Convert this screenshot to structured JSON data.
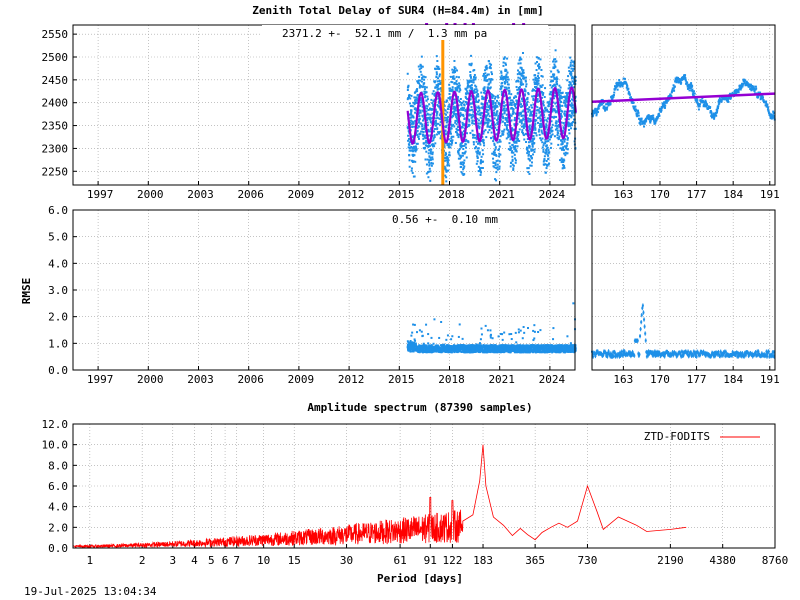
{
  "chart_data": [
    {
      "type": "scatter",
      "panel": "ztd-long-term",
      "title": "Zenith Total Delay of SUR4 (H=84.4m) in [mm]",
      "annotation": "2371.2 +-  52.1 mm /  1.3 mm pa",
      "ylim": [
        2220,
        2570
      ],
      "xlim": [
        1995.5,
        2025.5
      ],
      "y_ticks": [
        2250,
        2300,
        2350,
        2400,
        2450,
        2500,
        2550
      ],
      "x_ticks": [
        1997,
        2000,
        2003,
        2006,
        2009,
        2012,
        2015,
        2018,
        2021,
        2024
      ],
      "data_start": 2015.5,
      "data_end": 2025.55,
      "mean": 2371.2,
      "std": 52.1,
      "trend_mm_pa": 1.3,
      "seasonal_amplitude": 55,
      "gap_year": 2017.6,
      "series_colors": {
        "data": "#1e90e8",
        "model": "#9400d3",
        "gap": "#ff9400"
      }
    },
    {
      "type": "scatter",
      "panel": "ztd-recent",
      "xlim": [
        157,
        192
      ],
      "ylim": [
        2220,
        2570
      ],
      "x_ticks": [
        163,
        170,
        177,
        184,
        191
      ],
      "model_start": 2402,
      "model_end": 2420
    },
    {
      "type": "scatter",
      "panel": "rmse-long-term",
      "ylabel": "RMSE",
      "annotation": "0.56 +-  0.10 mm",
      "ylim": [
        0,
        6
      ],
      "xlim": [
        1995.5,
        2025.5
      ],
      "y_ticks": [
        "0.0",
        "1.0",
        "2.0",
        "3.0",
        "4.0",
        "5.0",
        "6.0"
      ],
      "x_ticks": [
        1997,
        2000,
        2003,
        2006,
        2009,
        2012,
        2015,
        2018,
        2021,
        2024
      ],
      "mean": 0.56,
      "std": 0.1
    },
    {
      "type": "scatter",
      "panel": "rmse-recent",
      "xlim": [
        157,
        192
      ],
      "ylim": [
        0,
        6
      ],
      "x_ticks": [
        163,
        170,
        177,
        184,
        191
      ],
      "spike_day": 166.7,
      "spike_value": 2.5
    },
    {
      "type": "line",
      "panel": "amplitude-spectrum",
      "title": "Amplitude spectrum (87390 samples)",
      "xlabel": "Period [days]",
      "legend": "ZTD-FODITS",
      "legend_position": "top-right",
      "x_scale": "log",
      "xlim": [
        0.8,
        8760
      ],
      "ylim": [
        0,
        12
      ],
      "y_ticks": [
        "0.0",
        "2.0",
        "4.0",
        "6.0",
        "8.0",
        "10.0",
        "12.0"
      ],
      "x_ticks": [
        1,
        2,
        3,
        4,
        5,
        6,
        7,
        10,
        15,
        30,
        61,
        91,
        122,
        183,
        365,
        730,
        2190,
        4380,
        8760
      ],
      "peaks": [
        {
          "period": 183,
          "amplitude": 10.0
        },
        {
          "period": 730,
          "amplitude": 6.0
        },
        {
          "period": 91,
          "amplitude": 4.9
        },
        {
          "period": 122,
          "amplitude": 4.6
        },
        {
          "period": 1100,
          "amplitude": 3.0
        },
        {
          "period": 2700,
          "amplitude": 2.0
        }
      ],
      "line_color": "#ff0000"
    }
  ],
  "footer": {
    "timestamp": "19-Jul-2025 13:04:34"
  }
}
